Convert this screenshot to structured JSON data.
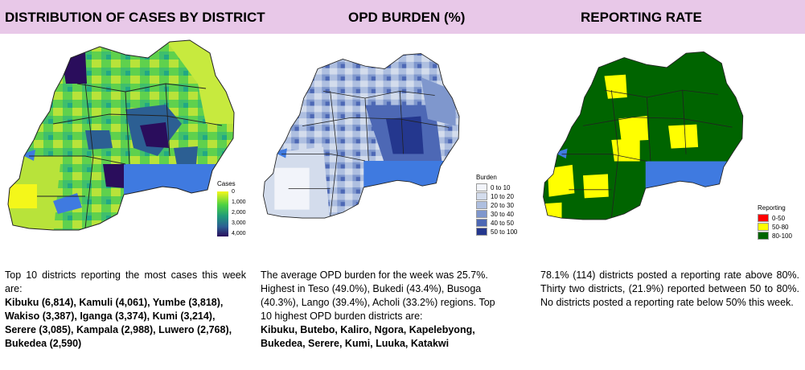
{
  "titles": {
    "cases": "DISTRIBUTION OF CASES BY DISTRICT",
    "opd": "OPD BURDEN (%)",
    "reporting": "REPORTING RATE"
  },
  "legend_cases": {
    "title": "Cases",
    "ticks": [
      "0",
      "1,000",
      "2,000",
      "3,000",
      "4,000"
    ]
  },
  "legend_burden": {
    "title": "Burden",
    "items": [
      {
        "label": "0 to 10",
        "color": "#f2f4fa"
      },
      {
        "label": "10 to 20",
        "color": "#d3dcec"
      },
      {
        "label": "20 to 30",
        "color": "#aebfe0"
      },
      {
        "label": "30 to 40",
        "color": "#7f97cd"
      },
      {
        "label": "40 to 50",
        "color": "#4d68b5"
      },
      {
        "label": "50 to 100",
        "color": "#24378e"
      }
    ]
  },
  "legend_reporting": {
    "title": "Reporting",
    "items": [
      {
        "label": "0-50",
        "color": "#ff0000"
      },
      {
        "label": "50-80",
        "color": "#ffff00"
      },
      {
        "label": "80-100",
        "color": "#006400"
      }
    ]
  },
  "colors": {
    "header": "#e8c8e8",
    "lake": "#3f7ae0",
    "border": "#222222"
  },
  "text_cases": {
    "intro": "Top 10 districts reporting the most cases this week are:",
    "list": "Kibuku (6,814), Kamuli (4,061), Yumbe (3,818), Wakiso (3,387), Iganga (3,374), Kumi (3,214), Serere (3,085), Kampala (2,988), Luwero (2,768), Bukedea (2,590)"
  },
  "text_opd": {
    "intro": "The average OPD burden for the week was 25.7%. Highest in Teso (49.0%), Bukedi (43.4%), Busoga (40.3%), Lango (39.4%), Acholi (33.2%) regions. Top 10 highest OPD burden districts are:",
    "list": "Kibuku, Butebo, Kaliro, Ngora, Kapelebyong, Bukedea, Serere, Kumi, Luuka, Katakwi"
  },
  "text_reporting": {
    "body": "78.1% (114) districts posted a reporting rate above 80%. Thirty two districts, (21.9%) reported between 50 to 80%. No districts posted a reporting rate below 50% this week."
  }
}
